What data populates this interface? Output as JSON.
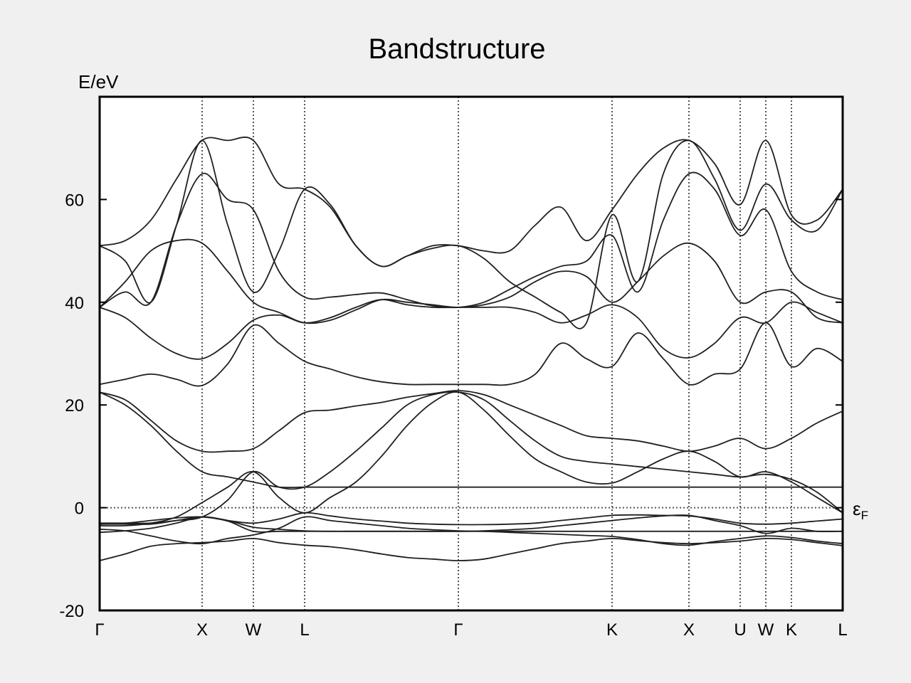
{
  "chart_data": {
    "type": "line",
    "title": "Bandstructure",
    "ylabel": "E/eV",
    "xlabel": "",
    "ylim": [
      -20,
      80
    ],
    "xlim": [
      0,
      14.5
    ],
    "yticks": [
      -20,
      0,
      20,
      40,
      60
    ],
    "kpath": [
      {
        "label": "Γ",
        "x": 0
      },
      {
        "label": "X",
        "x": 2
      },
      {
        "label": "W",
        "x": 3
      },
      {
        "label": "L",
        "x": 4
      },
      {
        "label": "Γ",
        "x": 7
      },
      {
        "label": "K",
        "x": 10
      },
      {
        "label": "X",
        "x": 11.5
      },
      {
        "label": "U",
        "x": 12.5
      },
      {
        "label": "W",
        "x": 13
      },
      {
        "label": "K",
        "x": 13.5
      },
      {
        "label": "L",
        "x": 14.5
      }
    ],
    "fermi_level": {
      "value": 0,
      "label": "ε",
      "sub": "F"
    },
    "line_color": "#202020",
    "grid": "vertical dotted lines at k-points, dotted Fermi level",
    "series": [
      {
        "x": [
          0,
          0.5,
          1.0,
          1.5,
          2.0,
          2.5,
          3.0,
          3.5,
          4.0,
          4.5,
          5.0,
          5.5,
          6.0,
          6.5,
          7.0,
          7.5,
          8.0,
          8.5,
          9.0,
          9.5,
          10.0,
          10.5,
          11.0,
          11.5,
          12.0,
          12.5,
          13.0,
          13.5,
          14.0,
          14.5
        ],
        "y": [
          -10.3,
          -9.0,
          -7.5,
          -7.0,
          -6.8,
          -6.5,
          -6.0,
          -6.8,
          -7.3,
          -7.6,
          -8.2,
          -9.0,
          -9.7,
          -10.0,
          -10.3,
          -10.0,
          -9.0,
          -8.0,
          -7.0,
          -6.5,
          -6.0,
          -6.4,
          -6.8,
          -7.0,
          -6.8,
          -6.5,
          -6.0,
          -6.2,
          -6.8,
          -7.4
        ]
      },
      {
        "x": [
          0,
          0.5,
          1.0,
          1.5,
          2.0,
          2.5,
          3.0,
          3.5,
          4.0,
          4.5,
          5.0,
          5.5,
          6.0,
          6.5,
          7.0,
          7.5,
          8.0,
          8.5,
          9.0,
          9.5,
          10.0,
          10.5,
          11.0,
          11.5,
          12.0,
          12.5,
          13.0,
          13.5,
          14.0,
          14.5
        ],
        "y": [
          -4.8,
          -4.5,
          -4.0,
          -3.0,
          -1.8,
          -2.5,
          -3.8,
          -4.2,
          -4.5,
          -4.6,
          -4.6,
          -4.6,
          -4.6,
          -4.6,
          -4.6,
          -4.5,
          -4.3,
          -4.0,
          -3.5,
          -3.0,
          -2.5,
          -2.0,
          -1.6,
          -1.5,
          -2.5,
          -3.5,
          -5.0,
          -4.0,
          -4.6,
          -4.6
        ]
      },
      {
        "x": [
          0,
          0.5,
          1.0,
          1.5,
          2.0,
          2.5,
          3.0,
          3.5,
          4.0,
          4.5,
          5.0,
          5.5,
          6.0,
          6.5,
          7.0,
          7.5,
          8.0,
          8.5,
          9.0,
          9.5,
          10.0,
          10.5,
          11.0,
          11.5,
          12.0,
          12.5,
          13.0,
          13.5,
          14.0,
          14.5
        ],
        "y": [
          -3.2,
          -3.2,
          -3.2,
          -2.5,
          -1.8,
          -2.5,
          -3.0,
          -2.2,
          -1.0,
          -1.6,
          -2.2,
          -2.6,
          -3.0,
          -3.2,
          -3.3,
          -3.3,
          -3.2,
          -3.0,
          -2.5,
          -2.0,
          -1.5,
          -1.4,
          -1.5,
          -1.6,
          -2.2,
          -3.0,
          -3.2,
          -3.0,
          -2.6,
          -2.2
        ]
      },
      {
        "x": [
          0,
          0.5,
          1.0,
          1.5,
          2.0,
          2.5,
          3.0,
          3.5,
          4.0,
          4.5,
          5.0,
          5.5,
          6.0,
          6.5,
          7.0,
          7.5,
          8.0,
          8.5,
          9.0,
          9.5,
          10.0,
          10.5,
          11.0,
          11.5,
          12.0,
          12.5,
          13.0,
          13.5,
          14.0,
          14.5
        ],
        "y": [
          -4.2,
          -4.5,
          -5.5,
          -6.5,
          -7.0,
          -6.0,
          -5.3,
          -4.0,
          -1.8,
          -2.5,
          -3.0,
          -3.5,
          -4.0,
          -4.3,
          -4.5,
          -4.6,
          -4.8,
          -5.0,
          -5.2,
          -5.4,
          -5.6,
          -6.2,
          -7.0,
          -7.3,
          -6.6,
          -6.0,
          -5.5,
          -5.8,
          -6.5,
          -7.0
        ]
      },
      {
        "x": [
          0,
          0.5,
          1.0,
          1.5,
          2.0,
          2.5,
          3.0,
          3.5,
          4.0,
          4.5,
          5.0,
          5.5,
          6.0,
          6.5,
          7.0,
          7.5,
          8.0,
          8.5,
          9.0,
          9.5,
          10.0,
          10.5,
          11.0,
          11.5,
          12.0,
          12.5,
          13.0,
          13.5,
          14.0,
          14.5
        ],
        "y": [
          22.5,
          21.0,
          17.0,
          13.0,
          11.0,
          11.0,
          11.5,
          15.0,
          18.5,
          19.0,
          19.8,
          20.5,
          21.5,
          22.2,
          22.8,
          22.0,
          20.0,
          18.0,
          16.0,
          14.0,
          13.5,
          13.0,
          12.0,
          11.0,
          12.0,
          13.5,
          11.5,
          13.5,
          16.5,
          18.8
        ]
      },
      {
        "x": [
          0,
          0.5,
          1.0,
          1.5,
          2.0,
          2.5,
          3.0,
          3.5,
          4.0,
          4.5,
          5.0,
          5.5,
          6.0,
          6.5,
          7.0,
          7.5,
          8.0,
          8.5,
          9.0,
          9.5,
          10.0,
          10.5,
          11.0,
          11.5,
          12.0,
          12.5,
          13.0,
          13.5,
          14.0,
          14.5
        ],
        "y": [
          22.5,
          20.0,
          16.0,
          11.0,
          7.0,
          6.0,
          5.0,
          4.0,
          4.0,
          4.0,
          4.0,
          4.0,
          4.0,
          4.0,
          4.0,
          4.0,
          4.0,
          4.0,
          4.0,
          4.0,
          4.0,
          4.0,
          4.0,
          4.0,
          4.0,
          4.0,
          4.0,
          4.0,
          4.0,
          4.0
        ]
      },
      {
        "x": [
          0,
          0.5,
          1.0,
          1.5,
          2.0,
          2.5,
          3.0,
          3.5,
          4.0,
          4.5,
          5.0,
          5.5,
          6.0,
          6.5,
          7.0,
          7.5,
          8.0,
          8.5,
          9.0,
          9.5,
          10.0,
          10.5,
          11.0,
          11.5,
          12.0,
          12.5,
          13.0,
          13.5,
          14.0,
          14.5
        ],
        "y": [
          -3.5,
          -3.5,
          -3.0,
          -1.8,
          1.0,
          4.0,
          7.0,
          2.0,
          -1.0,
          2.0,
          5.0,
          10.0,
          16.0,
          20.5,
          22.5,
          19.0,
          14.0,
          9.5,
          7.0,
          5.0,
          4.8,
          7.0,
          9.5,
          11.0,
          9.0,
          6.0,
          7.0,
          5.0,
          2.0,
          -1.0
        ]
      },
      {
        "x": [
          0,
          0.5,
          1.0,
          1.5,
          2.0,
          2.5,
          3.0,
          3.5,
          4.0,
          4.5,
          5.0,
          5.5,
          6.0,
          6.5,
          7.0,
          7.5,
          8.0,
          8.5,
          9.0,
          9.5,
          10.0,
          10.5,
          11.0,
          11.5,
          12.0,
          12.5,
          13.0,
          13.5,
          14.0,
          14.5
        ],
        "y": [
          -3.0,
          -3.0,
          -3.0,
          -2.5,
          -1.8,
          1.5,
          7.0,
          4.0,
          4.0,
          7.0,
          11.0,
          15.5,
          20.0,
          22.0,
          22.5,
          21.0,
          17.0,
          13.0,
          10.0,
          9.0,
          8.5,
          8.0,
          7.5,
          7.0,
          6.5,
          6.0,
          6.5,
          5.5,
          3.0,
          -1.0
        ]
      },
      {
        "x": [
          0,
          0.5,
          1.0,
          1.5,
          2.0,
          2.5,
          3.0,
          3.5,
          4.0,
          4.5,
          5.0,
          5.5,
          6.0,
          6.5,
          7.0,
          7.5,
          8.0,
          8.5,
          9.0,
          9.5,
          10.0,
          10.5,
          11.0,
          11.5,
          12.0,
          12.5,
          13.0,
          13.5,
          14.0,
          14.5
        ],
        "y": [
          24.0,
          25.0,
          26.0,
          25.0,
          23.8,
          28.0,
          35.5,
          32.0,
          28.5,
          27.0,
          25.5,
          24.5,
          24.0,
          24.0,
          24.0,
          24.0,
          24.0,
          26.0,
          32.0,
          29.0,
          27.5,
          34.0,
          29.0,
          24.0,
          26.0,
          27.0,
          36.0,
          27.5,
          31.0,
          28.5
        ]
      },
      {
        "x": [
          0,
          0.5,
          1.0,
          1.5,
          2.0,
          2.5,
          3.0,
          3.5,
          4.0,
          4.5,
          5.0,
          5.5,
          6.0,
          6.5,
          7.0,
          7.5,
          8.0,
          8.5,
          9.0,
          9.5,
          10.0,
          10.5,
          11.0,
          11.5,
          12.0,
          12.5,
          13.0,
          13.5,
          14.0,
          14.5
        ],
        "y": [
          39.0,
          37.0,
          33.0,
          30.0,
          29.0,
          32.0,
          36.5,
          37.5,
          36.0,
          37.0,
          39.0,
          40.5,
          39.5,
          39.0,
          39.0,
          39.0,
          39.0,
          38.0,
          36.0,
          37.5,
          39.5,
          37.0,
          31.0,
          29.2,
          32.0,
          37.0,
          36.0,
          40.0,
          38.0,
          36.0
        ]
      },
      {
        "x": [
          0,
          0.5,
          1.0,
          1.5,
          2.0,
          2.5,
          3.0,
          3.5,
          4.0,
          4.5,
          5.0,
          5.5,
          6.0,
          6.5,
          7.0,
          7.5,
          8.0,
          8.5,
          9.0,
          9.5,
          10.0,
          10.5,
          11.0,
          11.5,
          12.0,
          12.5,
          13.0,
          13.5,
          14.0,
          14.5
        ],
        "y": [
          39.0,
          44.0,
          50.0,
          52.0,
          51.5,
          46.0,
          40.0,
          38.0,
          36.0,
          36.5,
          38.5,
          40.5,
          40.0,
          39.5,
          39.0,
          39.5,
          41.0,
          44.0,
          46.0,
          45.0,
          40.0,
          44.0,
          49.0,
          51.5,
          48.0,
          40.0,
          42.0,
          42.0,
          37.0,
          36.0
        ]
      },
      {
        "x": [
          0,
          0.5,
          1.0,
          1.5,
          2.0,
          2.5,
          3.0,
          3.5,
          4.0,
          4.5,
          5.0,
          5.5,
          6.0,
          6.5,
          7.0,
          7.5,
          8.0,
          8.5,
          9.0,
          9.5,
          10.0,
          10.5,
          11.0,
          11.5,
          12.0,
          12.5,
          13.0,
          13.5,
          14.0,
          14.5
        ],
        "y": [
          39.0,
          42.0,
          40.0,
          55.0,
          65.0,
          60.0,
          58.0,
          46.0,
          41.0,
          41.0,
          41.5,
          41.8,
          40.5,
          39.3,
          39.0,
          40.0,
          42.5,
          45.0,
          47.0,
          48.0,
          53.0,
          42.0,
          56.0,
          65.0,
          62.0,
          53.0,
          58.0,
          46.0,
          42.0,
          40.5
        ]
      },
      {
        "x": [
          0,
          0.5,
          1.0,
          1.5,
          2.0,
          2.5,
          3.0,
          3.5,
          4.0,
          4.5,
          5.0,
          5.5,
          6.0,
          6.5,
          7.0,
          7.5,
          8.0,
          8.5,
          9.0,
          9.5,
          10.0,
          10.5,
          11.0,
          11.5,
          12.0,
          12.5,
          13.0,
          13.5,
          14.0,
          14.5
        ],
        "y": [
          51.0,
          52.0,
          56.0,
          64.0,
          71.5,
          71.5,
          71.5,
          63.0,
          62.0,
          58.5,
          51.0,
          47.0,
          49.0,
          51.0,
          51.0,
          50.0,
          50.0,
          55.0,
          58.5,
          52.0,
          58.0,
          65.0,
          70.0,
          71.5,
          67.0,
          59.0,
          71.5,
          57.0,
          56.0,
          62.0
        ]
      },
      {
        "x": [
          0,
          0.5,
          1.0,
          1.5,
          2.0,
          2.5,
          3.0,
          3.5,
          4.0,
          4.5,
          5.0,
          5.5,
          6.0,
          6.5,
          7.0,
          7.5,
          8.0,
          8.5,
          9.0,
          9.5,
          10.0,
          10.5,
          11.0,
          11.5,
          12.0,
          12.5,
          13.0,
          13.5,
          14.0,
          14.5
        ],
        "y": [
          51.0,
          48.0,
          40.0,
          55.0,
          71.5,
          55.0,
          42.0,
          50.0,
          62.0,
          59.0,
          51.0,
          47.0,
          49.0,
          50.5,
          51.0,
          48.5,
          44.0,
          41.0,
          38.0,
          36.0,
          57.0,
          44.0,
          65.0,
          71.5,
          64.0,
          54.0,
          63.0,
          56.0,
          54.0,
          62.0
        ]
      },
      {
        "x": [
          0,
          0.5,
          1.0,
          1.5,
          2.0,
          2.5,
          3.0,
          3.5,
          4.0,
          4.5,
          5.0,
          5.5,
          6.0,
          6.5,
          7.0,
          7.5,
          8.0,
          8.5,
          9.0,
          9.5,
          10.0,
          10.5,
          11.0,
          11.5,
          12.0,
          12.5,
          13.0,
          13.5,
          14.0,
          14.5
        ],
        "y": [
          -3.2,
          -3.0,
          -2.5,
          -2.0,
          -1.8,
          -2.6,
          -4.6,
          -4.6,
          -4.6,
          -4.6,
          -4.6,
          -4.6,
          -4.6,
          -4.6,
          -4.6,
          -4.6,
          -4.6,
          -4.6,
          -4.6,
          -4.6,
          -4.6,
          -4.6,
          -4.6,
          -4.6,
          -4.6,
          -4.6,
          -4.6,
          -4.6,
          -4.6,
          -4.6
        ]
      }
    ]
  }
}
